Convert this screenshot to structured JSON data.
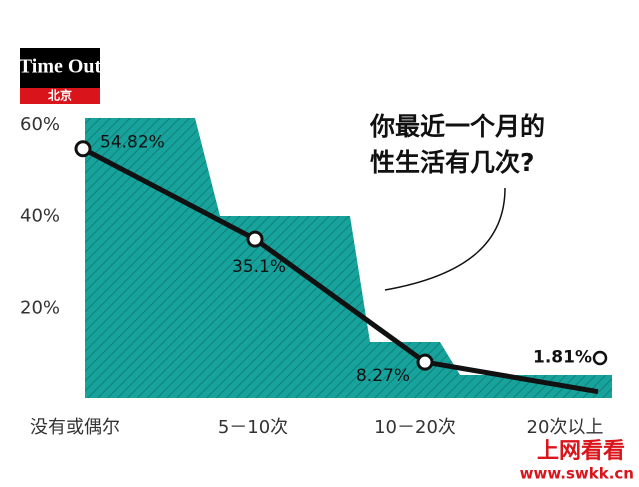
{
  "chart_data": {
    "type": "line",
    "logo": {
      "brand": "Time Out",
      "city": "北京"
    },
    "title": [
      "你最近一个月的",
      "性生活有几次?"
    ],
    "categories": [
      "没有或偶尔",
      "5－10次",
      "10－20次",
      "20次以上"
    ],
    "values": [
      54.82,
      35.1,
      8.27,
      1.81
    ],
    "value_labels": [
      "54.82%",
      "35.1%",
      "8.27%",
      "1.81%"
    ],
    "color": "#111111",
    "area_color": "#17a39c",
    "ylim": [
      0,
      60
    ],
    "yticks": [
      {
        "value": 20,
        "label": "20%"
      },
      {
        "value": 40,
        "label": "40%"
      },
      {
        "value": 60,
        "label": "60%"
      }
    ],
    "watermark": {
      "name": "上网看看",
      "url": "www.swkk.cn"
    }
  }
}
